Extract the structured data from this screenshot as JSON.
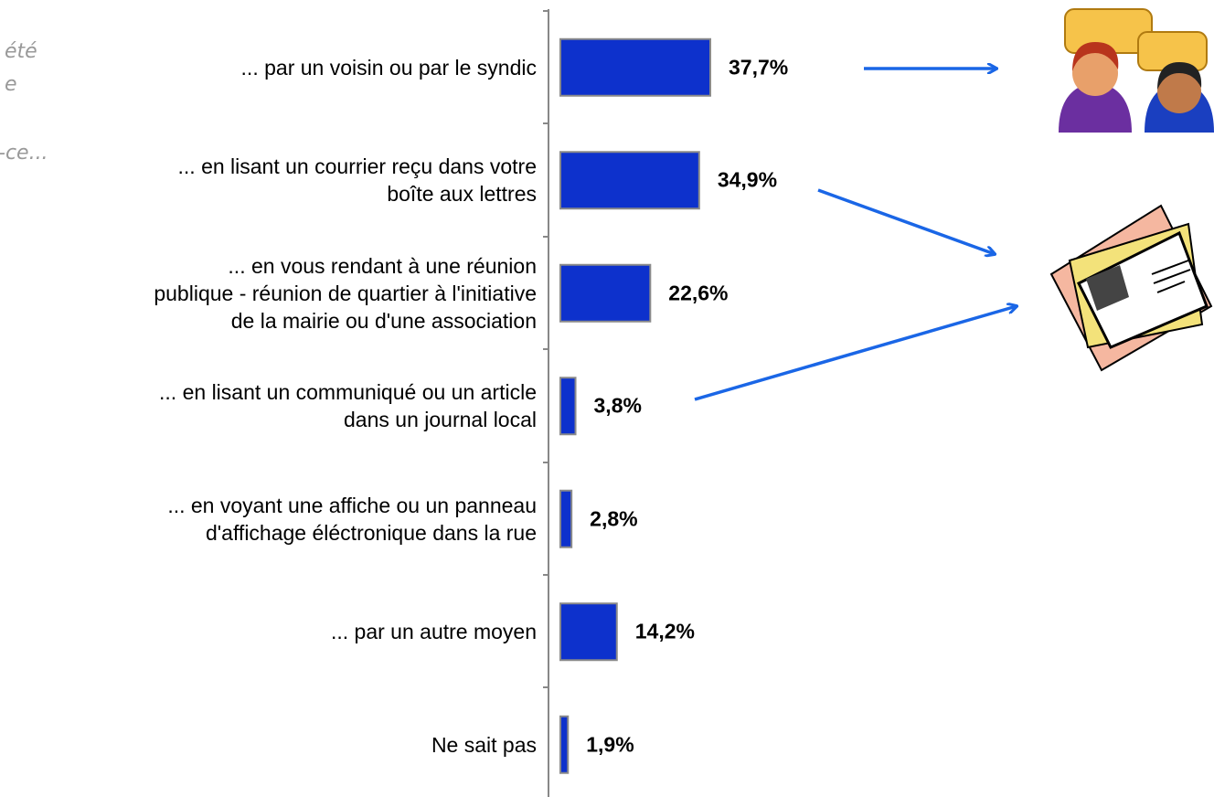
{
  "chart_data": {
    "type": "hbar",
    "categories": [
      "... par un voisin ou par le syndic",
      "... en lisant un courrier reçu dans votre\nboîte aux lettres",
      "... en vous rendant à une réunion\npublique - réunion de quartier à l'initiative\nde la mairie ou d'une association",
      "... en lisant un communiqué ou un article\ndans un journal local",
      "... en voyant une affiche ou un panneau\nd'affichage éléctronique dans la rue",
      "... par un autre moyen",
      "Ne sait pas"
    ],
    "values": [
      37.7,
      34.9,
      22.6,
      3.8,
      2.8,
      14.2,
      1.9
    ],
    "value_labels": [
      "37,7%",
      "34,9%",
      "22,6%",
      "3,8%",
      "2,8%",
      "14,2%",
      "1,9%"
    ],
    "color": "#0d31cc",
    "xlim": [
      0,
      100
    ],
    "annotations": [
      "été",
      "e",
      "-ce..."
    ]
  }
}
